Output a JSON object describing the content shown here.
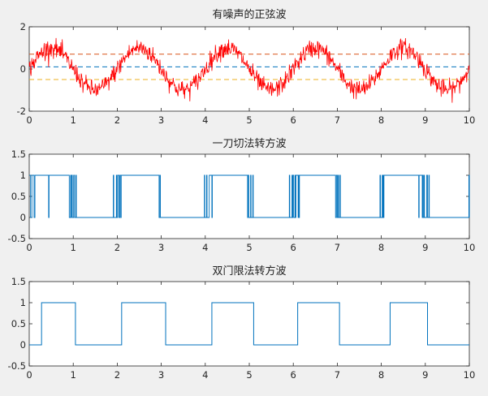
{
  "chart_data": [
    {
      "type": "line",
      "title": "有噪声的正弦波",
      "xlabel": "",
      "ylabel": "",
      "xlim": [
        0,
        10
      ],
      "ylim": [
        -2,
        2
      ],
      "xticks": [
        "0",
        "1",
        "2",
        "3",
        "4",
        "5",
        "6",
        "7",
        "8",
        "9",
        "10"
      ],
      "yticks": [
        "-2",
        "0",
        "2"
      ],
      "grid": false,
      "signal": {
        "description_free": true,
        "amplitude": 1,
        "frequency": 0.5,
        "phase_offset": 0.2,
        "noise_std": 0.22,
        "samples": 1000,
        "color": "#ff0000"
      },
      "threshold_lines": [
        {
          "y": 0.7,
          "color": "#d95319",
          "style": "dashed"
        },
        {
          "y": 0.1,
          "color": "#0072bd",
          "style": "dashed"
        },
        {
          "y": -0.5,
          "color": "#edb120",
          "style": "dashed"
        }
      ]
    },
    {
      "type": "line",
      "title": "一刀切法转方波",
      "xlabel": "",
      "ylabel": "",
      "xlim": [
        0,
        10
      ],
      "ylim": [
        -0.5,
        1.5
      ],
      "xticks": [
        "0",
        "1",
        "2",
        "3",
        "4",
        "5",
        "6",
        "7",
        "8",
        "9",
        "10"
      ],
      "yticks": [
        "-0.5",
        "0",
        "0.5",
        "1",
        "1.5"
      ],
      "grid": false,
      "threshold": 0.1,
      "color": "#0072bd"
    },
    {
      "type": "line",
      "title": "双门限法转方波",
      "xlabel": "",
      "ylabel": "",
      "xlim": [
        0,
        10
      ],
      "ylim": [
        -0.5,
        1.5
      ],
      "xticks": [
        "0",
        "1",
        "2",
        "3",
        "4",
        "5",
        "6",
        "7",
        "8",
        "9",
        "10"
      ],
      "yticks": [
        "-0.5",
        "0",
        "0.5",
        "1",
        "1.5"
      ],
      "grid": false,
      "x": [
        0,
        0.28,
        0.28,
        1.05,
        1.05,
        2.1,
        2.1,
        3.1,
        3.1,
        4.15,
        4.15,
        5.1,
        5.1,
        6.1,
        6.1,
        7.05,
        7.05,
        8.2,
        8.2,
        9.05,
        9.05,
        10
      ],
      "values": [
        0,
        0,
        1,
        1,
        0,
        0,
        1,
        1,
        0,
        0,
        1,
        1,
        0,
        0,
        1,
        1,
        0,
        0,
        1,
        1,
        0,
        0
      ],
      "color": "#0072bd"
    }
  ]
}
